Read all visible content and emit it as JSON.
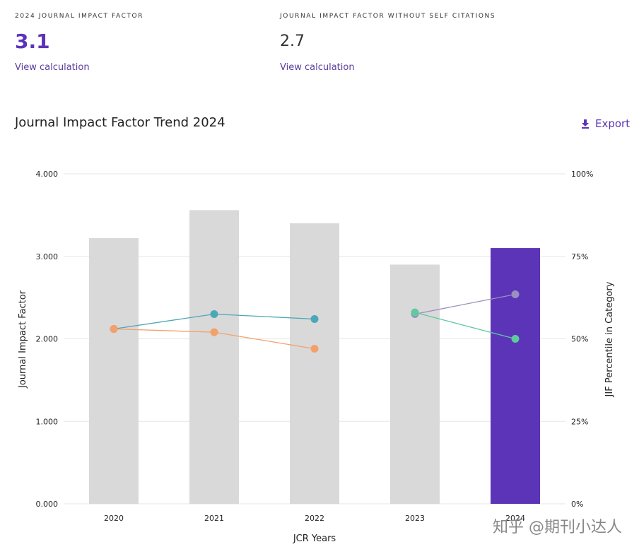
{
  "metrics": [
    {
      "label": "2024 JOURNAL IMPACT FACTOR",
      "value": "3.1",
      "link": "View calculation"
    },
    {
      "label": "JOURNAL IMPACT FACTOR WITHOUT SELF CITATIONS",
      "value": "2.7",
      "link": "View calculation"
    }
  ],
  "chart_header": {
    "title": "Journal Impact Factor Trend 2024",
    "export_label": "Export",
    "export_icon": "download-icon"
  },
  "watermark": "知乎 @期刊小达人",
  "colors": {
    "accent": "#5c34b8",
    "bar": "#d9d9d9",
    "bar_highlight": "#5c34b8",
    "teal": "#4ba8b8",
    "orange": "#f4a06b",
    "lavender": "#9b8fc0",
    "green": "#5fc9a0"
  },
  "chart_data": {
    "type": "bar",
    "xlabel": "JCR Years",
    "ylabel": "Journal Impact Factor",
    "y2label": "JIF Percentile in Category",
    "categories": [
      "2020",
      "2021",
      "2022",
      "2023",
      "2024"
    ],
    "values": [
      3.22,
      3.56,
      3.4,
      2.9,
      3.1
    ],
    "highlight_index": 4,
    "ylim": [
      0,
      4
    ],
    "y_ticks": [
      "0.000",
      "1.000",
      "2.000",
      "3.000",
      "4.000"
    ],
    "y2lim": [
      0,
      100
    ],
    "y2_ticks": [
      "0%",
      "25%",
      "50%",
      "75%",
      "100%"
    ],
    "grid": true,
    "percentile_series": [
      {
        "color": "#4ba8b8",
        "x": [
          "2020",
          "2021",
          "2022"
        ],
        "values": [
          53,
          57.5,
          56
        ]
      },
      {
        "color": "#f4a06b",
        "x": [
          "2020",
          "2021",
          "2022"
        ],
        "values": [
          53,
          52,
          47
        ]
      },
      {
        "color": "#9b8fc0",
        "x": [
          "2023",
          "2024"
        ],
        "values": [
          57.5,
          63.5
        ]
      },
      {
        "color": "#5fc9a0",
        "x": [
          "2023",
          "2024"
        ],
        "values": [
          58,
          50
        ]
      }
    ]
  }
}
